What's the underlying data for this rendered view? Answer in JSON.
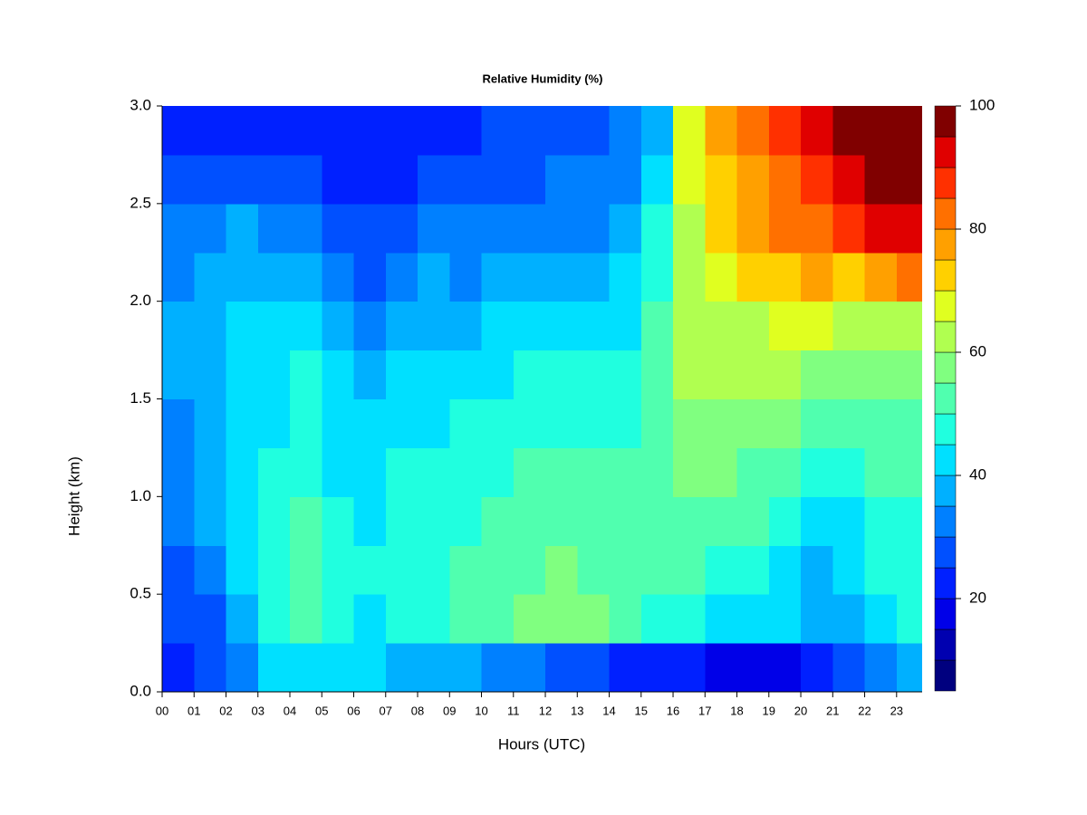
{
  "chart_data": {
    "type": "heatmap",
    "title": "Relative Humidity (%)",
    "x_label": "Hours (UTC)",
    "y_label": "Height (km)",
    "x": [
      0.5,
      1.5,
      2.5,
      3.5,
      4.5,
      5.5,
      6.5,
      7.5,
      8.5,
      9.5,
      10.5,
      11.5,
      12.5,
      13.5,
      14.5,
      15.5,
      16.5,
      17.5,
      18.5,
      19.5,
      20.5,
      21.5,
      22.5,
      23.5
    ],
    "y": [
      0.125,
      0.375,
      0.625,
      0.875,
      1.125,
      1.375,
      1.625,
      1.875,
      2.125,
      2.375,
      2.625,
      2.875
    ],
    "values": [
      [
        22,
        25,
        28,
        30,
        32,
        33,
        35,
        35,
        33,
        30,
        25,
        22
      ],
      [
        25,
        28,
        32,
        35,
        37,
        38,
        38,
        37,
        36,
        33,
        26,
        23
      ],
      [
        30,
        38,
        40,
        40,
        42,
        42,
        42,
        40,
        38,
        35,
        28,
        24
      ],
      [
        40,
        48,
        48,
        46,
        45,
        44,
        44,
        42,
        38,
        33,
        27,
        24
      ],
      [
        40,
        50,
        50,
        50,
        48,
        47,
        46,
        43,
        38,
        32,
        27,
        23
      ],
      [
        42,
        46,
        48,
        46,
        44,
        42,
        40,
        38,
        33,
        28,
        24,
        20
      ],
      [
        40,
        44,
        45,
        44,
        42,
        40,
        37,
        33,
        28,
        25,
        22,
        20
      ],
      [
        38,
        46,
        48,
        47,
        45,
        43,
        40,
        36,
        32,
        28,
        24,
        22
      ],
      [
        36,
        46,
        48,
        47,
        46,
        44,
        41,
        38,
        35,
        30,
        26,
        23
      ],
      [
        35,
        50,
        50,
        48,
        46,
        45,
        42,
        38,
        34,
        30,
        26,
        24
      ],
      [
        34,
        52,
        52,
        50,
        48,
        46,
        43,
        40,
        35,
        31,
        27,
        25
      ],
      [
        30,
        55,
        54,
        52,
        50,
        48,
        45,
        41,
        37,
        33,
        29,
        27
      ],
      [
        28,
        57,
        55,
        53,
        50,
        48,
        45,
        42,
        38,
        34,
        30,
        28
      ],
      [
        26,
        56,
        54,
        52,
        50,
        48,
        45,
        42,
        38,
        34,
        30,
        28
      ],
      [
        24,
        50,
        52,
        52,
        50,
        48,
        47,
        44,
        42,
        38,
        33,
        30
      ],
      [
        22,
        48,
        52,
        53,
        52,
        52,
        52,
        50,
        48,
        45,
        40,
        38
      ],
      [
        20,
        45,
        50,
        52,
        55,
        58,
        60,
        60,
        62,
        63,
        65,
        68
      ],
      [
        18,
        42,
        48,
        52,
        55,
        58,
        60,
        62,
        65,
        70,
        72,
        75
      ],
      [
        17,
        40,
        45,
        50,
        53,
        57,
        60,
        63,
        70,
        75,
        78,
        80
      ],
      [
        16,
        40,
        44,
        48,
        52,
        55,
        60,
        65,
        72,
        80,
        82,
        85
      ],
      [
        20,
        36,
        38,
        42,
        46,
        52,
        58,
        65,
        75,
        82,
        87,
        92
      ],
      [
        25,
        38,
        40,
        43,
        48,
        52,
        56,
        62,
        72,
        85,
        92,
        97
      ],
      [
        30,
        44,
        46,
        47,
        50,
        53,
        56,
        62,
        78,
        90,
        96,
        98
      ],
      [
        35,
        46,
        48,
        48,
        50,
        53,
        56,
        62,
        80,
        92,
        97,
        98
      ]
    ],
    "xlim": [
      0,
      23.8
    ],
    "ylim": [
      0,
      3
    ],
    "xticks": [
      {
        "value": 0,
        "label": "00"
      },
      {
        "value": 1,
        "label": "01"
      },
      {
        "value": 2,
        "label": "02"
      },
      {
        "value": 3,
        "label": "03"
      },
      {
        "value": 4,
        "label": "04"
      },
      {
        "value": 5,
        "label": "05"
      },
      {
        "value": 6,
        "label": "06"
      },
      {
        "value": 7,
        "label": "07"
      },
      {
        "value": 8,
        "label": "08"
      },
      {
        "value": 9,
        "label": "09"
      },
      10,
      11,
      12,
      13,
      14,
      15,
      16,
      17,
      18,
      19,
      20,
      21,
      22,
      23
    ],
    "yticks": [
      {
        "value": 0,
        "label": "0.0"
      },
      0.5,
      {
        "value": 1,
        "label": "1.0"
      },
      1.5,
      {
        "value": 2,
        "label": "2.0"
      },
      2.5,
      {
        "value": 3,
        "label": "3.0"
      }
    ],
    "colorbar": {
      "levels": [
        5,
        10,
        15,
        20,
        25,
        30,
        35,
        40,
        45,
        50,
        55,
        60,
        65,
        70,
        75,
        80,
        85,
        90,
        95,
        100
      ],
      "colors": [
        "#00007F",
        "#0000B0",
        "#0000E8",
        "#0020FF",
        "#0050FF",
        "#0080FF",
        "#00B0FF",
        "#00E0FF",
        "#20FFDF",
        "#50FFAF",
        "#80FF80",
        "#B0FF50",
        "#E0FF20",
        "#FFD000",
        "#FFA000",
        "#FF7000",
        "#FF3000",
        "#E00000",
        "#800000"
      ],
      "ticks": [
        20,
        40,
        60,
        80,
        100
      ]
    }
  }
}
